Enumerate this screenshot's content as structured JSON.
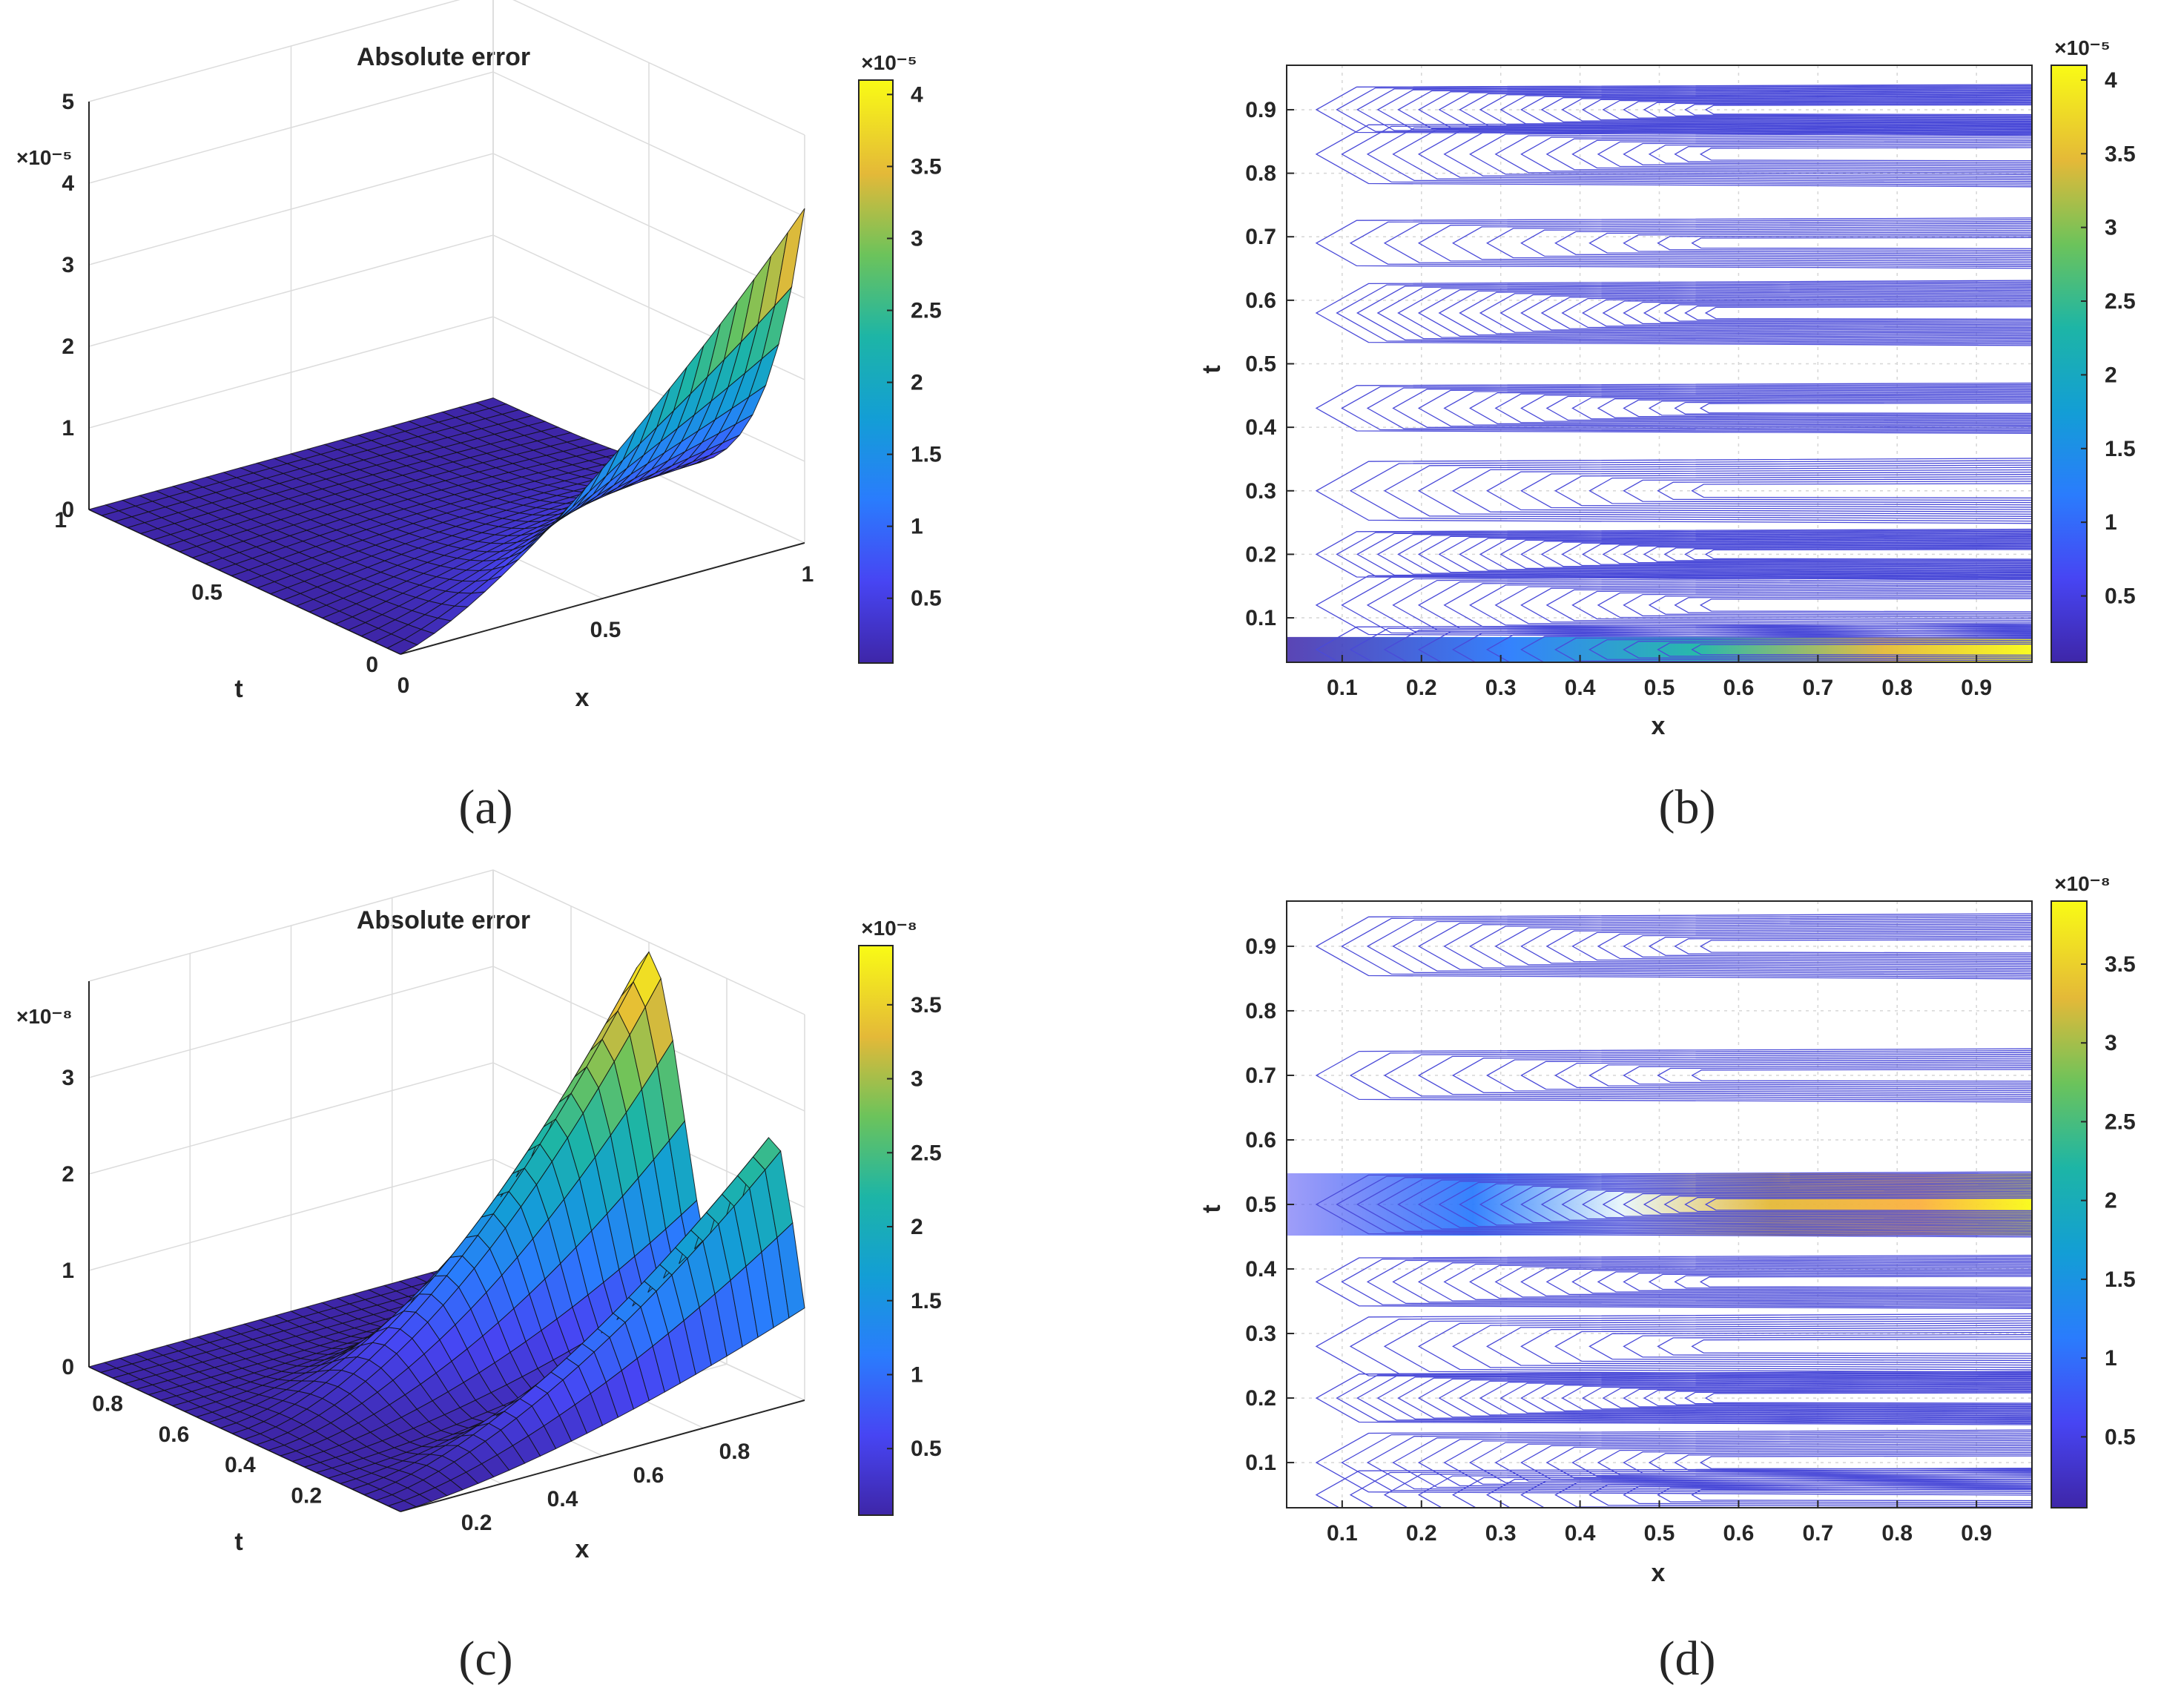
{
  "figure": {
    "panels": [
      {
        "id": "a",
        "caption": "(a)",
        "title": "Absolute error",
        "colorbar_exponent": "×10⁻⁵",
        "colorbar_ticks": [
          "0.5",
          "1",
          "1.5",
          "2",
          "2.5",
          "3",
          "3.5",
          "4"
        ]
      },
      {
        "id": "b",
        "caption": "(b)",
        "colorbar_exponent": "×10⁻⁵",
        "colorbar_ticks": [
          "0.5",
          "1",
          "1.5",
          "2",
          "2.5",
          "3",
          "3.5",
          "4"
        ]
      },
      {
        "id": "c",
        "caption": "(c)",
        "title": "Absolute error",
        "colorbar_exponent": "×10⁻⁸",
        "colorbar_ticks": [
          "0.5",
          "1",
          "1.5",
          "2",
          "2.5",
          "3",
          "3.5"
        ]
      },
      {
        "id": "d",
        "caption": "(d)",
        "colorbar_exponent": "×10⁻⁸",
        "colorbar_ticks": [
          "0.5",
          "1",
          "1.5",
          "2",
          "2.5",
          "3",
          "3.5"
        ]
      }
    ]
  },
  "chart_data": [
    {
      "type": "surface",
      "panel": "a",
      "title": "Absolute error",
      "xlabel": "x",
      "ylabel": "t",
      "zlabel": "",
      "z_exponent": "×10⁻⁵",
      "x_ticks": [
        "0",
        "0.5",
        "1"
      ],
      "y_ticks": [
        "0",
        "0.5",
        "1"
      ],
      "z_ticks": [
        "0",
        "1",
        "2",
        "3",
        "4",
        "5"
      ],
      "xlim": [
        0,
        1
      ],
      "ylim": [
        0,
        1
      ],
      "zlim": [
        0,
        5
      ],
      "colorbar": {
        "min": 0.05,
        "max": 4.1,
        "ticks": [
          "0.5",
          "1",
          "1.5",
          "2",
          "2.5",
          "3",
          "3.5",
          "4"
        ],
        "exponent": "×10⁻⁵"
      },
      "peak": {
        "x": 0.95,
        "t": 0.05,
        "value": 4.1
      },
      "description_of_shape": "error largest near t=0 rising with x, near zero elsewhere"
    },
    {
      "type": "contour",
      "panel": "b",
      "xlabel": "x",
      "ylabel": "t",
      "x_ticks": [
        "0.1",
        "0.2",
        "0.3",
        "0.4",
        "0.5",
        "0.6",
        "0.7",
        "0.8",
        "0.9"
      ],
      "y_ticks": [
        "0.1",
        "0.2",
        "0.3",
        "0.4",
        "0.5",
        "0.6",
        "0.7",
        "0.8",
        "0.9"
      ],
      "xlim": [
        0.03,
        0.97
      ],
      "ylim": [
        0.03,
        0.97
      ],
      "colorbar": {
        "min": 0.05,
        "max": 4.1,
        "ticks": [
          "0.5",
          "1",
          "1.5",
          "2",
          "2.5",
          "3",
          "3.5",
          "4"
        ],
        "exponent": "×10⁻⁵"
      },
      "bands_t": [
        0.05,
        0.12,
        0.2,
        0.3,
        0.43,
        0.58,
        0.69,
        0.83,
        0.9
      ],
      "hot_band_t": 0.05
    },
    {
      "type": "surface",
      "panel": "c",
      "title": "Absolute error",
      "xlabel": "x",
      "ylabel": "t",
      "z_exponent": "×10⁻⁸",
      "x_ticks": [
        "0.2",
        "0.4",
        "0.6",
        "0.8"
      ],
      "y_ticks": [
        "0.2",
        "0.4",
        "0.6",
        "0.8"
      ],
      "z_ticks": [
        "0",
        "1",
        "2",
        "3"
      ],
      "xlim": [
        0.03,
        0.97
      ],
      "ylim": [
        0.03,
        0.97
      ],
      "zlim": [
        0,
        4
      ],
      "colorbar": {
        "min": 0.05,
        "max": 3.9,
        "ticks": [
          "0.5",
          "1",
          "1.5",
          "2",
          "2.5",
          "3",
          "3.5"
        ],
        "exponent": "×10⁻⁸"
      },
      "peak": {
        "x": 0.9,
        "t": 0.5,
        "value": 3.9
      }
    },
    {
      "type": "contour",
      "panel": "d",
      "xlabel": "x",
      "ylabel": "t",
      "x_ticks": [
        "0.1",
        "0.2",
        "0.3",
        "0.4",
        "0.5",
        "0.6",
        "0.7",
        "0.8",
        "0.9"
      ],
      "y_ticks": [
        "0.1",
        "0.2",
        "0.3",
        "0.4",
        "0.5",
        "0.6",
        "0.7",
        "0.8",
        "0.9"
      ],
      "xlim": [
        0.03,
        0.97
      ],
      "ylim": [
        0.03,
        0.97
      ],
      "colorbar": {
        "min": 0.05,
        "max": 3.9,
        "ticks": [
          "0.5",
          "1",
          "1.5",
          "2",
          "2.5",
          "3",
          "3.5"
        ],
        "exponent": "×10⁻⁸"
      },
      "bands_t": [
        0.05,
        0.1,
        0.2,
        0.28,
        0.38,
        0.5,
        0.7,
        0.9
      ],
      "hot_band_t": 0.5
    }
  ]
}
